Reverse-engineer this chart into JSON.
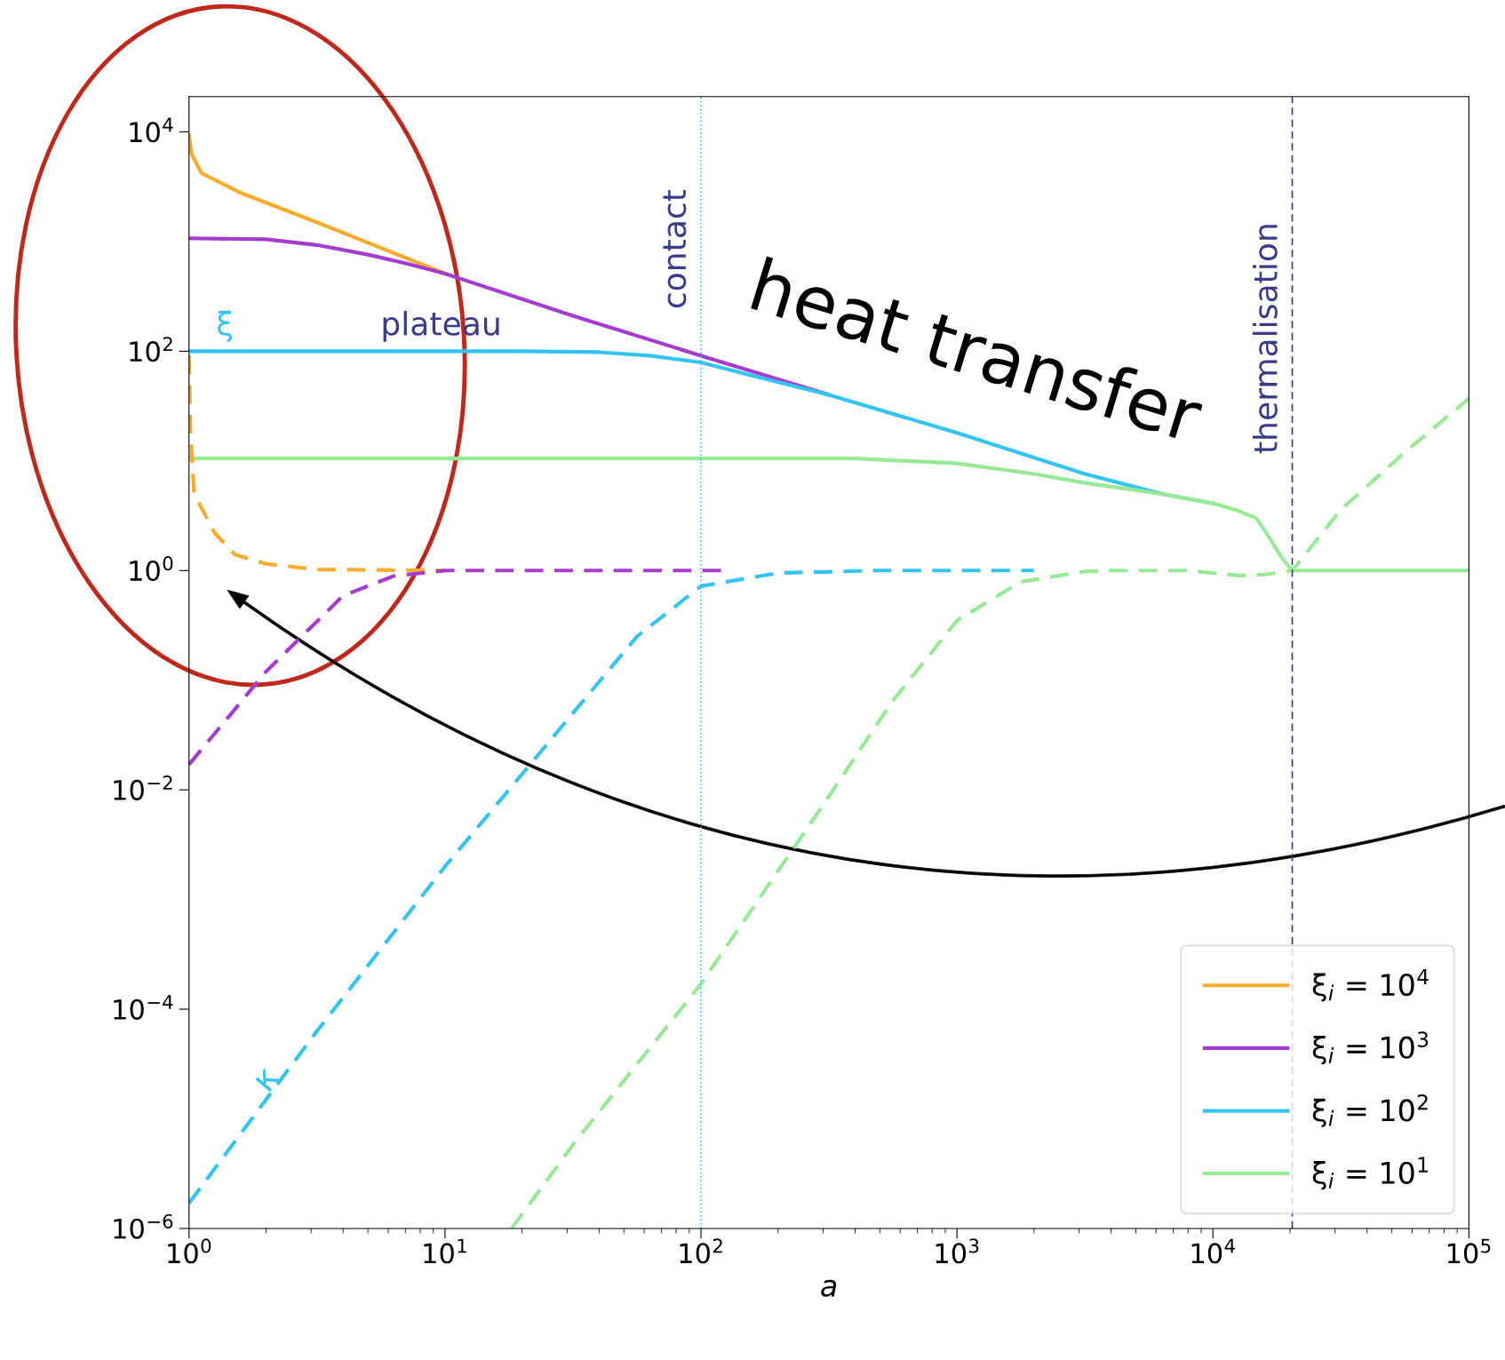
{
  "chart_data": {
    "type": "line",
    "xlabel": "a",
    "log": "xy",
    "xlim": [
      1,
      100000
    ],
    "ylim": [
      1e-06,
      21000
    ],
    "xticks": [
      {
        "value": 1,
        "label": "10$^{0}$"
      },
      {
        "value": 10,
        "label": "10$^{1}$"
      },
      {
        "value": 100,
        "label": "10$^{2}$"
      },
      {
        "value": 1000,
        "label": "10$^{3}$"
      },
      {
        "value": 10000,
        "label": "10$^{4}$"
      },
      {
        "value": 100000,
        "label": "10$^{5}$"
      }
    ],
    "yticks": [
      {
        "value": 1e-06,
        "label": "10$^{−6}$"
      },
      {
        "value": 0.0001,
        "label": "10$^{−4}$"
      },
      {
        "value": 0.01,
        "label": "10$^{−2}$"
      },
      {
        "value": 1,
        "label": "10$^{0}$"
      },
      {
        "value": 100,
        "label": "10$^{2}$"
      },
      {
        "value": 10000,
        "label": "10$^{4}$"
      }
    ],
    "grid": false,
    "legend": "bottom right",
    "series": [
      {
        "name": "ξ$_{i}$ = 10$^{4}$",
        "color": "#f8ac2c",
        "line_style": "solid",
        "x": [
          1,
          1.023,
          1.12,
          1.58,
          3.16,
          10
        ],
        "values": [
          9300,
          6300,
          4200,
          2800,
          1500,
          510
        ]
      },
      {
        "name": "ξ$_{i}$ = 10$^{3}$",
        "color": "#a43cd0",
        "line_style": "solid",
        "x": [
          1,
          2.0,
          3.16,
          5.0,
          7.1,
          10,
          31.6,
          100,
          316
        ],
        "values": [
          1070,
          1050,
          930,
          760,
          630,
          510,
          210,
          91,
          40
        ]
      },
      {
        "name": "ξ$_{i}$ = 10$^{2}$",
        "color": "#34c4f4",
        "line_style": "solid",
        "x": [
          1,
          20,
          40,
          63,
          100,
          158,
          316,
          1000,
          3162,
          6310,
          10000
        ],
        "values": [
          100,
          100,
          98,
          91,
          79,
          60,
          40,
          18,
          7.6,
          5.0,
          4.1
        ]
      },
      {
        "name": "ξ$_{i}$ = 10$^{1}$",
        "color": "#96ea96",
        "line_style": "solid",
        "x": [
          1,
          400,
          1000,
          2000,
          3162,
          6310,
          10000,
          12590,
          14790,
          16600,
          18620,
          20420,
          100000
        ],
        "values": [
          10.5,
          10.5,
          9.5,
          7.6,
          6.3,
          5.0,
          4.1,
          3.5,
          3.0,
          2.0,
          1.3,
          1,
          1
        ]
      },
      {
        "color": "#f8ac2c",
        "line_style": "dashed",
        "x": [
          1,
          1.012,
          1.047,
          1.26,
          1.51,
          2.0,
          3.16,
          10
        ],
        "values": [
          91,
          20,
          5,
          2.2,
          1.4,
          1.15,
          1.02,
          1
        ]
      },
      {
        "color": "#a43cd0",
        "line_style": "dashed",
        "x": [
          1,
          2.0,
          4.0,
          6.3,
          10,
          120
        ],
        "values": [
          0.017,
          0.12,
          0.59,
          0.89,
          1,
          1
        ]
      },
      {
        "color": "#34c4f4",
        "line_style": "dashed",
        "x": [
          1,
          3.16,
          10,
          31.6,
          56.2,
          100,
          200,
          500,
          2000
        ],
        "values": [
          1.7e-06,
          6.3e-05,
          0.002,
          0.05,
          0.25,
          0.72,
          0.95,
          1,
          1
        ]
      },
      {
        "color": "#96ea96",
        "line_style": "dashed",
        "x": [
          18.2,
          31.6,
          100,
          316,
          562,
          1000,
          1778,
          3162,
          3981,
          7943,
          12590,
          15850,
          20420,
          31620,
          56230,
          100000
        ],
        "values": [
          1e-06,
          5.8e-06,
          0.00017,
          0.0087,
          0.065,
          0.35,
          0.79,
          0.98,
          1,
          1,
          0.9,
          0.92,
          1,
          3.6,
          12,
          37
        ]
      }
    ],
    "ref_lines": [
      {
        "axis": "x",
        "value": 100,
        "label": "contact",
        "color": "#34c4f4",
        "line_style": "dotted"
      },
      {
        "axis": "x",
        "value": 20420,
        "label": "thermalisation",
        "color": "#3a3a8a",
        "line_style": "dashed"
      }
    ],
    "annotations": [
      "ξ",
      "plateau",
      "κ",
      "heat transfer"
    ]
  }
}
